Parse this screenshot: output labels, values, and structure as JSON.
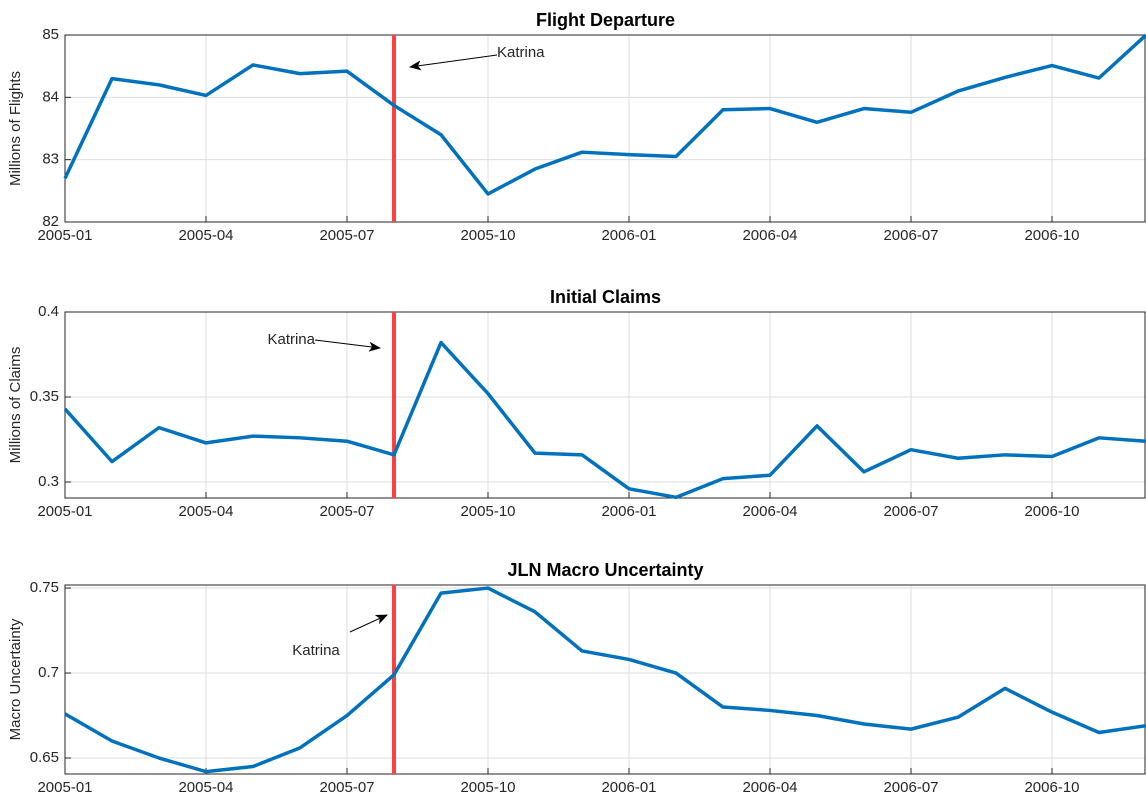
{
  "chart_data": [
    {
      "type": "line",
      "title": "Flight Departure",
      "ylabel": "Millions of Flights",
      "color": "#0072bd",
      "grid": true,
      "x": [
        "2005-01",
        "2005-02",
        "2005-03",
        "2005-04",
        "2005-05",
        "2005-06",
        "2005-07",
        "2005-08",
        "2005-09",
        "2005-10",
        "2005-11",
        "2005-12",
        "2006-01",
        "2006-02",
        "2006-03",
        "2006-04",
        "2006-05",
        "2006-06",
        "2006-07",
        "2006-08",
        "2006-09",
        "2006-10",
        "2006-11",
        "2006-12"
      ],
      "xticks": [
        "2005-01",
        "2005-04",
        "2005-07",
        "2005-10",
        "2006-01",
        "2006-04",
        "2006-07",
        "2006-10"
      ],
      "values": [
        82.7,
        84.3,
        84.2,
        84.03,
        84.52,
        84.38,
        84.42,
        83.87,
        83.4,
        82.45,
        82.85,
        83.12,
        83.08,
        83.05,
        83.8,
        83.82,
        83.6,
        83.82,
        83.76,
        84.1,
        84.32,
        84.51,
        84.31,
        85.0
      ],
      "ylim": [
        82,
        85
      ],
      "yticks": [
        82,
        83,
        84,
        85
      ],
      "event": {
        "x": "2005-08",
        "label": "Katrina",
        "color": "#ff4040"
      }
    },
    {
      "type": "line",
      "title": "Initial Claims",
      "ylabel": "Millions of Claims",
      "color": "#0072bd",
      "grid": true,
      "x": [
        "2005-01",
        "2005-02",
        "2005-03",
        "2005-04",
        "2005-05",
        "2005-06",
        "2005-07",
        "2005-08",
        "2005-09",
        "2005-10",
        "2005-11",
        "2005-12",
        "2006-01",
        "2006-02",
        "2006-03",
        "2006-04",
        "2006-05",
        "2006-06",
        "2006-07",
        "2006-08",
        "2006-09",
        "2006-10",
        "2006-11",
        "2006-12"
      ],
      "xticks": [
        "2005-01",
        "2005-04",
        "2005-07",
        "2005-10",
        "2006-01",
        "2006-04",
        "2006-07",
        "2006-10"
      ],
      "values": [
        0.343,
        0.312,
        0.332,
        0.323,
        0.327,
        0.326,
        0.324,
        0.316,
        0.382,
        0.352,
        0.317,
        0.316,
        0.296,
        0.291,
        0.302,
        0.304,
        0.333,
        0.306,
        0.319,
        0.314,
        0.316,
        0.315,
        0.326,
        0.324
      ],
      "ylim": [
        0.2906,
        0.4
      ],
      "yticks": [
        0.3,
        0.35,
        0.4
      ],
      "event": {
        "x": "2005-08",
        "label": "Katrina",
        "color": "#ff4040"
      }
    },
    {
      "type": "line",
      "title": "JLN Macro Uncertainty",
      "ylabel": "Macro Uncertainty",
      "color": "#0072bd",
      "grid": true,
      "x": [
        "2005-01",
        "2005-02",
        "2005-03",
        "2005-04",
        "2005-05",
        "2005-06",
        "2005-07",
        "2005-08",
        "2005-09",
        "2005-10",
        "2005-11",
        "2005-12",
        "2006-01",
        "2006-02",
        "2006-03",
        "2006-04",
        "2006-05",
        "2006-06",
        "2006-07",
        "2006-08",
        "2006-09",
        "2006-10",
        "2006-11",
        "2006-12"
      ],
      "xticks": [
        "2005-01",
        "2005-04",
        "2005-07",
        "2005-10",
        "2006-01",
        "2006-04",
        "2006-07",
        "2006-10"
      ],
      "values": [
        0.676,
        0.66,
        0.65,
        0.642,
        0.645,
        0.656,
        0.675,
        0.699,
        0.747,
        0.75,
        0.736,
        0.713,
        0.708,
        0.7,
        0.68,
        0.678,
        0.675,
        0.67,
        0.667,
        0.674,
        0.691,
        0.677,
        0.665,
        0.669
      ],
      "ylim": [
        0.6406,
        0.7518
      ],
      "yticks": [
        0.65,
        0.7,
        0.75
      ],
      "event": {
        "x": "2005-08",
        "label": "Katrina",
        "color": "#ff4040"
      }
    }
  ]
}
